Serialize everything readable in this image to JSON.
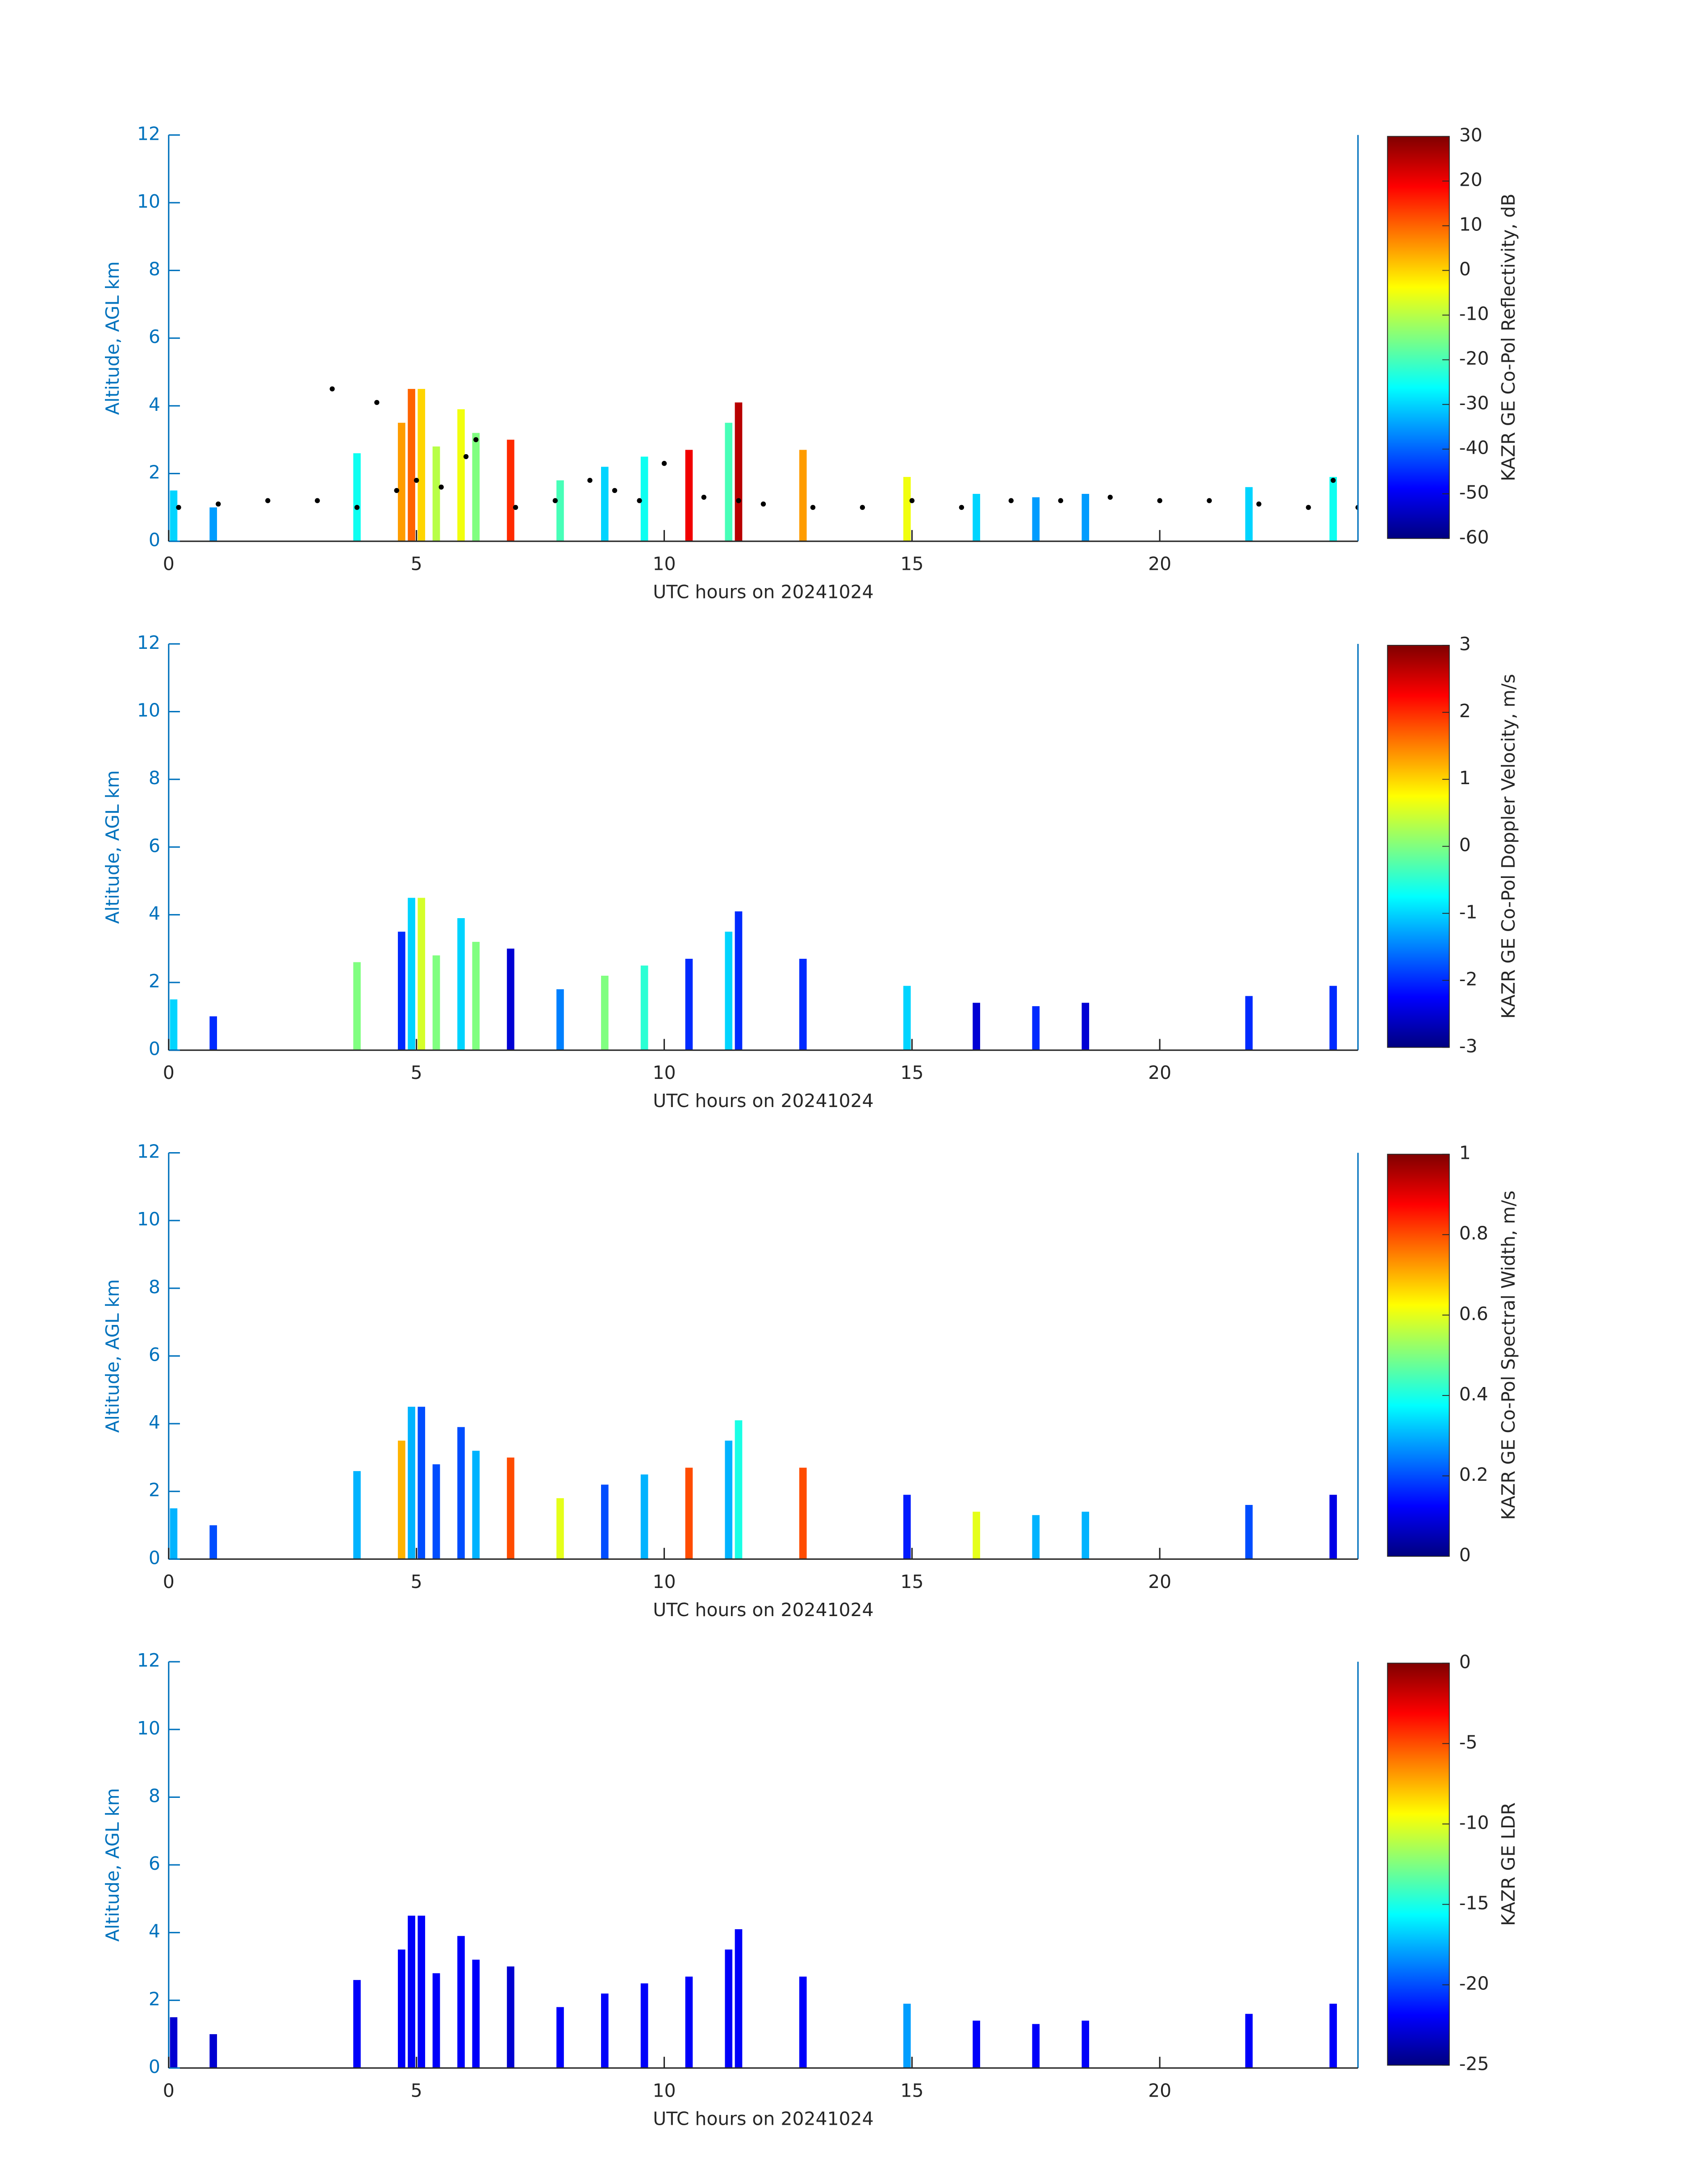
{
  "chart_data": [
    {
      "type": "heatmap",
      "xlabel": "UTC hours on 20241024",
      "ylabel": "Altitude, AGL km",
      "colorbar_label": "KAZR GE Co-Pol Reflectivity, dB",
      "xlim": [
        0,
        24
      ],
      "xticks": [
        0,
        5,
        10,
        15,
        20
      ],
      "ylim": [
        0,
        12
      ],
      "yticks": [
        0,
        2,
        4,
        6,
        8,
        10,
        12
      ],
      "clim": [
        -60,
        30
      ],
      "cticks": [
        -60,
        -50,
        -40,
        -30,
        -20,
        -10,
        0,
        10,
        20,
        30
      ],
      "colormap": "jet",
      "columns": {
        "x": [
          0.1,
          0.9,
          3.8,
          4.7,
          4.9,
          5.1,
          5.4,
          5.9,
          6.2,
          6.9,
          7.9,
          8.8,
          9.6,
          10.5,
          11.3,
          11.5,
          12.8,
          14.9,
          16.3,
          17.5,
          18.5,
          21.8,
          23.5
        ],
        "values": [
          1.5,
          1.0,
          2.6,
          3.5,
          4.5,
          4.5,
          2.8,
          3.9,
          3.2,
          3.0,
          1.8,
          2.2,
          2.5,
          2.7,
          3.5,
          4.1,
          2.7,
          1.9,
          1.4,
          1.3,
          1.4,
          1.6,
          1.9
        ],
        "z": [
          -30,
          -35,
          -25,
          5,
          10,
          0,
          -10,
          -5,
          -15,
          15,
          -20,
          -30,
          -25,
          20,
          -20,
          25,
          5,
          -5,
          -30,
          -35,
          -35,
          -30,
          -25
        ]
      },
      "points": {
        "color": "#000000",
        "x": [
          0.2,
          1.0,
          2.0,
          3.0,
          3.3,
          3.8,
          4.2,
          4.6,
          5.0,
          5.5,
          6.0,
          6.2,
          7.0,
          7.8,
          8.5,
          9.0,
          9.5,
          10.0,
          10.8,
          11.5,
          12.0,
          13.0,
          14.0,
          15.0,
          16.0,
          17.0,
          18.0,
          19.0,
          20.0,
          21.0,
          22.0,
          23.0,
          23.5,
          24
        ],
        "values": [
          1.0,
          1.1,
          1.2,
          1.2,
          4.5,
          1.0,
          4.1,
          1.5,
          1.8,
          1.6,
          2.5,
          3.0,
          1.0,
          1.2,
          1.8,
          1.5,
          1.2,
          2.3,
          1.3,
          1.2,
          1.1,
          1.0,
          1.0,
          1.2,
          1.0,
          1.2,
          1.2,
          1.3,
          1.2,
          1.2,
          1.1,
          1.0,
          1.8,
          1.0
        ]
      }
    },
    {
      "type": "heatmap",
      "xlabel": "UTC hours on 20241024",
      "ylabel": "Altitude, AGL km",
      "colorbar_label": "KAZR GE Co-Pol Doppler Velocity, m/s",
      "xlim": [
        0,
        24
      ],
      "xticks": [
        0,
        5,
        10,
        15,
        20
      ],
      "ylim": [
        0,
        12
      ],
      "yticks": [
        0,
        2,
        4,
        6,
        8,
        10,
        12
      ],
      "clim": [
        -3,
        3
      ],
      "cticks": [
        -3,
        -2,
        -1,
        0,
        1,
        2,
        3
      ],
      "colormap": "jet",
      "columns": {
        "x": [
          0.1,
          0.9,
          3.8,
          4.7,
          4.9,
          5.1,
          5.4,
          5.9,
          6.2,
          6.9,
          7.9,
          8.8,
          9.6,
          10.5,
          11.3,
          11.5,
          12.8,
          14.9,
          16.3,
          17.5,
          18.5,
          21.8,
          23.5
        ],
        "values": [
          1.5,
          1.0,
          2.6,
          3.5,
          4.5,
          4.5,
          2.8,
          3.9,
          3.2,
          3.0,
          1.8,
          2.2,
          2.5,
          2.7,
          3.5,
          4.1,
          2.7,
          1.9,
          1.4,
          1.3,
          1.4,
          1.6,
          1.9
        ],
        "z": [
          -1,
          -2,
          0,
          -2,
          -1,
          0.5,
          0,
          -1,
          0,
          -2.5,
          -1.5,
          0,
          -0.5,
          -2,
          -1,
          -2,
          -2,
          -1,
          -2.5,
          -2,
          -2.5,
          -2,
          -2
        ]
      }
    },
    {
      "type": "heatmap",
      "xlabel": "UTC hours on 20241024",
      "ylabel": "Altitude, AGL km",
      "colorbar_label": "KAZR GE Co-Pol Spectral Width, m/s",
      "xlim": [
        0,
        24
      ],
      "xticks": [
        0,
        5,
        10,
        15,
        20
      ],
      "ylim": [
        0,
        12
      ],
      "yticks": [
        0,
        2,
        4,
        6,
        8,
        10,
        12
      ],
      "clim": [
        0,
        1
      ],
      "cticks": [
        0,
        0.2,
        0.4,
        0.6,
        0.8,
        1
      ],
      "colormap": "jet",
      "columns": {
        "x": [
          0.1,
          0.9,
          3.8,
          4.7,
          4.9,
          5.1,
          5.4,
          5.9,
          6.2,
          6.9,
          7.9,
          8.8,
          9.6,
          10.5,
          11.3,
          11.5,
          12.8,
          14.9,
          16.3,
          17.5,
          18.5,
          21.8,
          23.5
        ],
        "values": [
          1.5,
          1.0,
          2.6,
          3.5,
          4.5,
          4.5,
          2.8,
          3.9,
          3.2,
          3.0,
          1.8,
          2.2,
          2.5,
          2.7,
          3.5,
          4.1,
          2.7,
          1.9,
          1.4,
          1.3,
          1.4,
          1.6,
          1.9
        ],
        "z": [
          0.3,
          0.2,
          0.3,
          0.7,
          0.3,
          0.2,
          0.2,
          0.2,
          0.3,
          0.8,
          0.6,
          0.2,
          0.3,
          0.8,
          0.3,
          0.4,
          0.8,
          0.15,
          0.6,
          0.3,
          0.3,
          0.2,
          0.1
        ]
      }
    },
    {
      "type": "heatmap",
      "xlabel": "UTC hours on 20241024",
      "ylabel": "Altitude, AGL km",
      "colorbar_label": "KAZR GE LDR",
      "xlim": [
        0,
        24
      ],
      "xticks": [
        0,
        5,
        10,
        15,
        20
      ],
      "ylim": [
        0,
        12
      ],
      "yticks": [
        0,
        2,
        4,
        6,
        8,
        10,
        12
      ],
      "clim": [
        -25,
        0
      ],
      "cticks": [
        -25,
        -20,
        -15,
        -10,
        -5,
        0
      ],
      "colormap": "jet",
      "columns": {
        "x": [
          0.1,
          0.9,
          3.8,
          4.7,
          4.9,
          5.1,
          5.4,
          5.9,
          6.2,
          6.9,
          7.9,
          8.8,
          9.6,
          10.5,
          11.3,
          11.5,
          12.8,
          14.9,
          16.3,
          17.5,
          18.5,
          21.8,
          23.5
        ],
        "values": [
          1.5,
          1.0,
          2.6,
          3.5,
          4.5,
          4.5,
          2.8,
          3.9,
          3.2,
          3.0,
          1.8,
          2.2,
          2.5,
          2.7,
          3.5,
          4.1,
          2.7,
          1.9,
          1.4,
          1.3,
          1.4,
          1.6,
          1.9
        ],
        "z": [
          -23,
          -23,
          -22,
          -22,
          -22,
          -22,
          -22,
          -22,
          -22,
          -23,
          -22,
          -22,
          -22,
          -22,
          -22,
          -22,
          -22,
          -18,
          -22,
          -22,
          -22,
          -22,
          -22
        ]
      }
    }
  ]
}
